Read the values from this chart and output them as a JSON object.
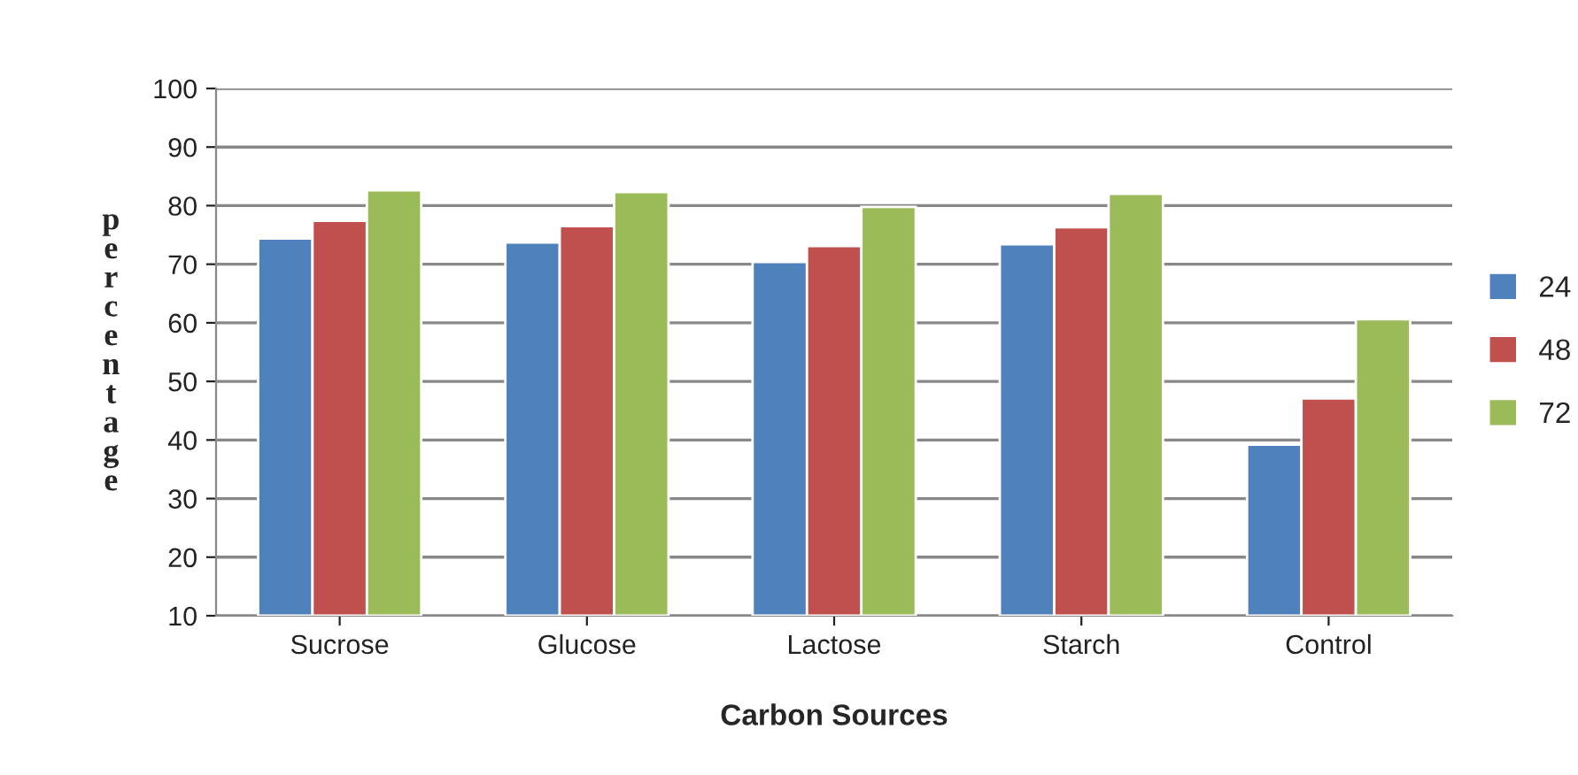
{
  "chart_data": {
    "type": "bar",
    "xlabel": "Carbon Sources",
    "ylabel": "percentage",
    "categories": [
      "Sucrose",
      "Glucose",
      "Lactose",
      "Starch",
      "Control"
    ],
    "series": [
      {
        "name": "24",
        "color": "#4f81bd",
        "values": [
          74.4,
          73.7,
          70.4,
          73.4,
          39.2
        ]
      },
      {
        "name": "48",
        "color": "#c0504d",
        "values": [
          77.4,
          76.5,
          73.1,
          76.3,
          47.1
        ]
      },
      {
        "name": "72",
        "color": "#9bbb59",
        "values": [
          82.6,
          82.3,
          79.8,
          82.0,
          60.6
        ]
      }
    ],
    "ylim": [
      10,
      100
    ],
    "yticks": [
      10,
      20,
      30,
      40,
      50,
      60,
      70,
      80,
      90,
      100
    ],
    "grid": "y",
    "legend": "right"
  }
}
